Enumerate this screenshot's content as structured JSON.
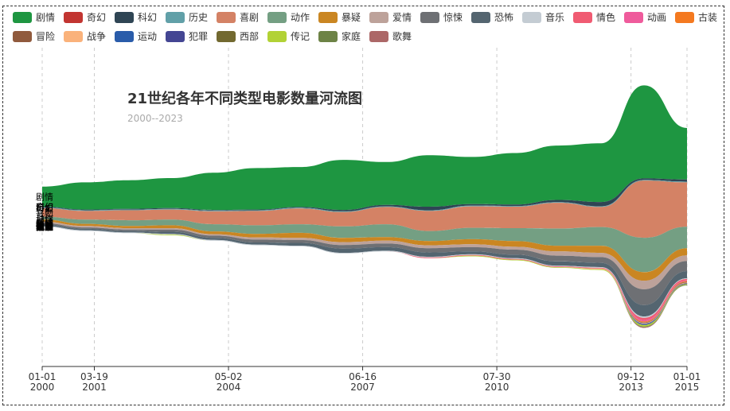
{
  "chart_data": {
    "type": "area",
    "subtype": "themeRiver",
    "title": "21世纪各年不同类型电影数量河流图",
    "subtitle": "2000--2023",
    "legend_position": "top",
    "grid": "vertical-dashed",
    "x_ticks": [
      {
        "date": "2000-01-01",
        "line1": "01-01",
        "line2": "2000"
      },
      {
        "date": "2001-03-19",
        "line1": "03-19",
        "line2": "2001"
      },
      {
        "date": "2004-05-02",
        "line1": "05-02",
        "line2": "2004"
      },
      {
        "date": "2007-06-16",
        "line1": "06-16",
        "line2": "2007"
      },
      {
        "date": "2010-07-30",
        "line1": "07-30",
        "line2": "2010"
      },
      {
        "date": "2013-09-12",
        "line1": "09-12",
        "line2": "2013"
      },
      {
        "date": "2015-01-01",
        "line1": "01-01",
        "line2": "2015"
      }
    ],
    "x": [
      "2000",
      "2001",
      "2002",
      "2003",
      "2004",
      "2005",
      "2006",
      "2007",
      "2008",
      "2009",
      "2010",
      "2011",
      "2012",
      "2013",
      "2014",
      "2015"
    ],
    "series": [
      {
        "name": "剧情",
        "color": "#1e9641",
        "values": [
          28,
          38,
          40,
          42,
          52,
          58,
          56,
          70,
          60,
          72,
          66,
          72,
          76,
          82,
          130,
          72
        ]
      },
      {
        "name": "奇幻",
        "color": "#c23531",
        "values": [
          0,
          0,
          0,
          0,
          0,
          0,
          0,
          0,
          0,
          0,
          0,
          0,
          0,
          0,
          0,
          0
        ]
      },
      {
        "name": "科幻",
        "color": "#2f4554",
        "values": [
          1,
          1,
          1,
          1,
          1,
          1,
          1,
          2,
          2,
          5,
          2,
          2,
          3,
          6,
          2,
          3
        ]
      },
      {
        "name": "历史",
        "color": "#61a0a8",
        "values": [
          1,
          1,
          1,
          1,
          1,
          1,
          1,
          1,
          1,
          1,
          1,
          1,
          1,
          1,
          1,
          1
        ]
      },
      {
        "name": "喜剧",
        "color": "#d48265",
        "values": [
          12,
          12,
          14,
          14,
          18,
          20,
          22,
          20,
          24,
          28,
          30,
          30,
          36,
          28,
          80,
          62
        ]
      },
      {
        "name": "动作",
        "color": "#749f83",
        "values": [
          4,
          6,
          8,
          8,
          10,
          12,
          12,
          16,
          18,
          14,
          16,
          18,
          24,
          26,
          48,
          30
        ]
      },
      {
        "name": "暴疑",
        "color": "#ca8622",
        "values": [
          3,
          3,
          3,
          4,
          4,
          5,
          7,
          6,
          5,
          6,
          7,
          8,
          8,
          10,
          12,
          10
        ]
      },
      {
        "name": "爱情",
        "color": "#bda29a",
        "values": [
          2,
          2,
          2,
          2,
          2,
          3,
          3,
          4,
          4,
          4,
          4,
          4,
          6,
          6,
          12,
          8
        ]
      },
      {
        "name": "惊悚",
        "color": "#6e7074",
        "values": [
          2,
          2,
          2,
          3,
          3,
          4,
          4,
          5,
          5,
          6,
          6,
          7,
          8,
          8,
          22,
          14
        ]
      },
      {
        "name": "恐怖",
        "color": "#546570",
        "values": [
          2,
          2,
          2,
          3,
          3,
          3,
          4,
          6,
          5,
          6,
          4,
          5,
          6,
          6,
          16,
          10
        ]
      },
      {
        "name": "音乐",
        "color": "#c4ccd3",
        "values": [
          1,
          1,
          1,
          1,
          1,
          1,
          1,
          1,
          1,
          1,
          1,
          1,
          1,
          1,
          2,
          1
        ]
      },
      {
        "name": "情色",
        "color": "#f05b72",
        "values": [
          0,
          0,
          0,
          0,
          0,
          0,
          0,
          0,
          0,
          1,
          1,
          1,
          1,
          1,
          3,
          2
        ]
      },
      {
        "name": "动画",
        "color": "#ef5b9c",
        "values": [
          0,
          0,
          0,
          0,
          0,
          0,
          0,
          0,
          0,
          0,
          0,
          0,
          0,
          0,
          2,
          1
        ]
      },
      {
        "name": "古装",
        "color": "#f47920",
        "values": [
          0,
          0,
          0,
          0,
          0,
          0,
          0,
          0,
          0,
          0,
          0,
          0,
          0,
          0,
          1,
          1
        ]
      },
      {
        "name": "冒险",
        "color": "#905a3d",
        "values": [
          0,
          0,
          0,
          0,
          0,
          0,
          0,
          0,
          0,
          0,
          0,
          0,
          0,
          0,
          1,
          1
        ]
      },
      {
        "name": "战争",
        "color": "#fab27b",
        "values": [
          0,
          0,
          0,
          0,
          0,
          0,
          0,
          0,
          0,
          0,
          0,
          0,
          0,
          1,
          1,
          1
        ]
      },
      {
        "name": "运动",
        "color": "#2a5caa",
        "values": [
          0,
          0,
          0,
          0,
          0,
          0,
          0,
          0,
          0,
          0,
          0,
          0,
          0,
          0,
          1,
          0
        ]
      },
      {
        "name": "犯罪",
        "color": "#444693",
        "values": [
          0,
          0,
          0,
          0,
          0,
          0,
          0,
          0,
          0,
          0,
          0,
          0,
          0,
          0,
          1,
          1
        ]
      },
      {
        "name": "西部",
        "color": "#726930",
        "values": [
          0,
          0,
          0,
          0,
          0,
          0,
          0,
          0,
          0,
          0,
          0,
          0,
          0,
          0,
          0,
          0
        ]
      },
      {
        "name": "传记",
        "color": "#b2d235",
        "values": [
          0,
          0,
          0,
          1,
          0,
          0,
          0,
          0,
          0,
          0,
          1,
          1,
          1,
          1,
          2,
          1
        ]
      },
      {
        "name": "家庭",
        "color": "#6d8346",
        "values": [
          0,
          0,
          0,
          0,
          0,
          0,
          0,
          0,
          0,
          0,
          0,
          0,
          0,
          0,
          1,
          1
        ]
      },
      {
        "name": "歌舞",
        "color": "#ac6767",
        "values": [
          0,
          0,
          0,
          0,
          0,
          0,
          0,
          0,
          0,
          0,
          0,
          0,
          0,
          0,
          1,
          0
        ]
      }
    ]
  }
}
